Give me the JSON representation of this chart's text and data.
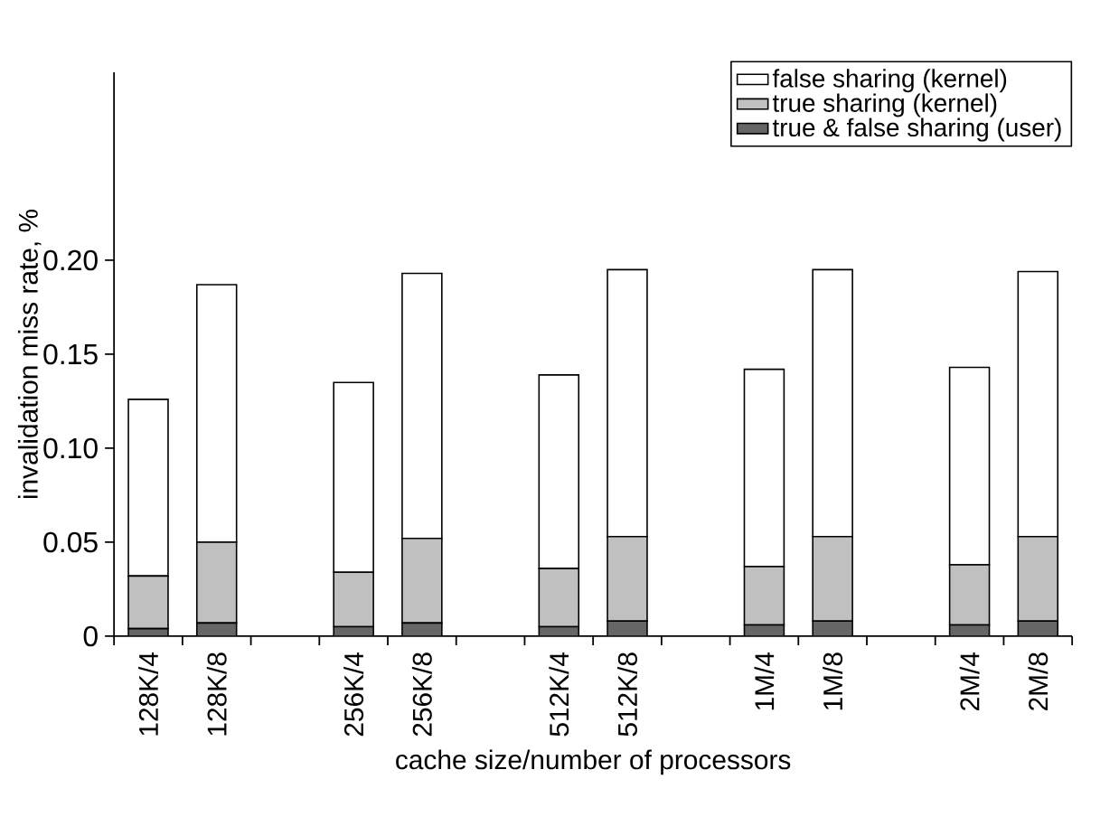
{
  "chart_data": {
    "type": "bar",
    "stacked": true,
    "xlabel": "cache size/number of processors",
    "ylabel": "invalidation miss rate, %",
    "categories": [
      "128K/4",
      "128K/8",
      null,
      "256K/4",
      "256K/8",
      null,
      "512K/4",
      "512K/8",
      null,
      "1M/4",
      "1M/8",
      null,
      "2M/4",
      "2M/8"
    ],
    "series": [
      {
        "name": "true & false sharing (user)",
        "color": "#666666",
        "values": [
          0.004,
          0.007,
          null,
          0.005,
          0.007,
          null,
          0.005,
          0.008,
          null,
          0.006,
          0.008,
          null,
          0.006,
          0.008
        ]
      },
      {
        "name": "true sharing (kernel)",
        "color": "#c0c0c0",
        "values": [
          0.028,
          0.043,
          null,
          0.029,
          0.045,
          null,
          0.031,
          0.045,
          null,
          0.031,
          0.045,
          null,
          0.032,
          0.045
        ]
      },
      {
        "name": "false sharing (kernel)",
        "color": "#ffffff",
        "values": [
          0.094,
          0.137,
          null,
          0.101,
          0.141,
          null,
          0.103,
          0.142,
          null,
          0.105,
          0.142,
          null,
          0.105,
          0.141
        ]
      }
    ],
    "ylim": [
      0,
      0.3
    ],
    "yticks": [
      0,
      0.05,
      {
        "value": 0.1,
        "label": "0.10"
      },
      0.15,
      {
        "value": 0.2,
        "label": "0.20"
      }
    ],
    "legend": "top right",
    "grid": false
  }
}
